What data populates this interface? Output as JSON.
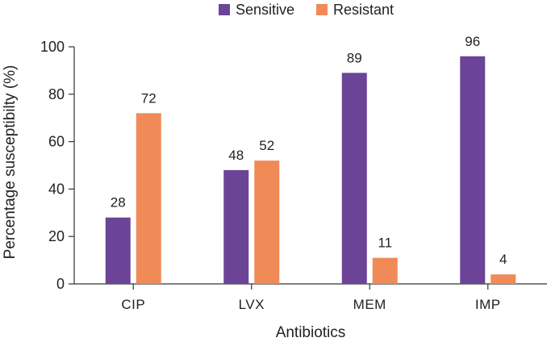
{
  "chart_data": {
    "type": "bar",
    "title": "",
    "xlabel": "Antibiotics",
    "ylabel": "Percentage susceptibilty (%)",
    "ylim": [
      0,
      100
    ],
    "yticks": [
      0,
      20,
      40,
      60,
      80,
      100
    ],
    "grid": false,
    "legend_position": "top-center",
    "categories": [
      "CIP",
      "LVX",
      "MEM",
      "IMP"
    ],
    "series": [
      {
        "name": "Sensitive",
        "color": "#6b4497",
        "values": [
          28,
          48,
          89,
          96
        ]
      },
      {
        "name": "Resistant",
        "color": "#f08a57",
        "values": [
          72,
          52,
          11,
          4
        ]
      }
    ]
  }
}
